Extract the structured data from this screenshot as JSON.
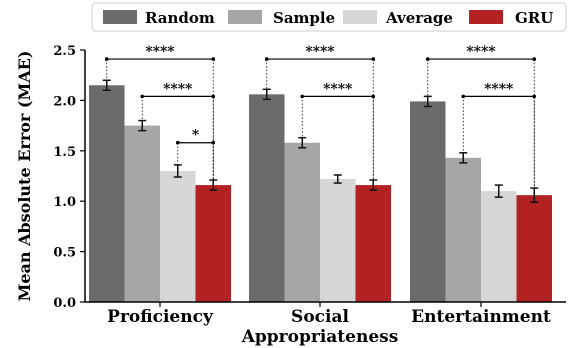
{
  "chart_data": {
    "type": "bar",
    "ylabel": "Mean Absolute Error (MAE)",
    "ylim": [
      0,
      2.5
    ],
    "yticks": [
      "0.0",
      "0.5",
      "1.0",
      "1.5",
      "2.0",
      "2.5"
    ],
    "categories": [
      [
        "Proficiency"
      ],
      [
        "Social",
        "Appropriateness"
      ],
      [
        "Entertainment"
      ]
    ],
    "series": [
      {
        "name": "Random",
        "color": "#6b6b6b",
        "values": [
          2.15,
          2.06,
          1.99
        ],
        "errors": [
          0.05,
          0.05,
          0.05
        ]
      },
      {
        "name": "Sample",
        "color": "#a6a6a6",
        "values": [
          1.75,
          1.58,
          1.43
        ],
        "errors": [
          0.05,
          0.05,
          0.05
        ]
      },
      {
        "name": "Average",
        "color": "#d6d6d6",
        "values": [
          1.3,
          1.22,
          1.1
        ],
        "errors": [
          0.06,
          0.04,
          0.06
        ]
      },
      {
        "name": "GRU",
        "color": "#b22222",
        "values": [
          1.16,
          1.16,
          1.06
        ],
        "errors": [
          0.05,
          0.05,
          0.07
        ]
      }
    ],
    "significance": [
      {
        "group": 0,
        "from": 0,
        "to": 3,
        "label": "****",
        "y": 2.41
      },
      {
        "group": 0,
        "from": 1,
        "to": 3,
        "label": "****",
        "y": 2.04
      },
      {
        "group": 0,
        "from": 2,
        "to": 3,
        "label": "*",
        "y": 1.58
      },
      {
        "group": 1,
        "from": 0,
        "to": 3,
        "label": "****",
        "y": 2.41
      },
      {
        "group": 1,
        "from": 1,
        "to": 3,
        "label": "****",
        "y": 2.04
      },
      {
        "group": 2,
        "from": 0,
        "to": 3,
        "label": "****",
        "y": 2.41
      },
      {
        "group": 2,
        "from": 1,
        "to": 3,
        "label": "****",
        "y": 2.04
      }
    ],
    "legend_position": "top"
  }
}
